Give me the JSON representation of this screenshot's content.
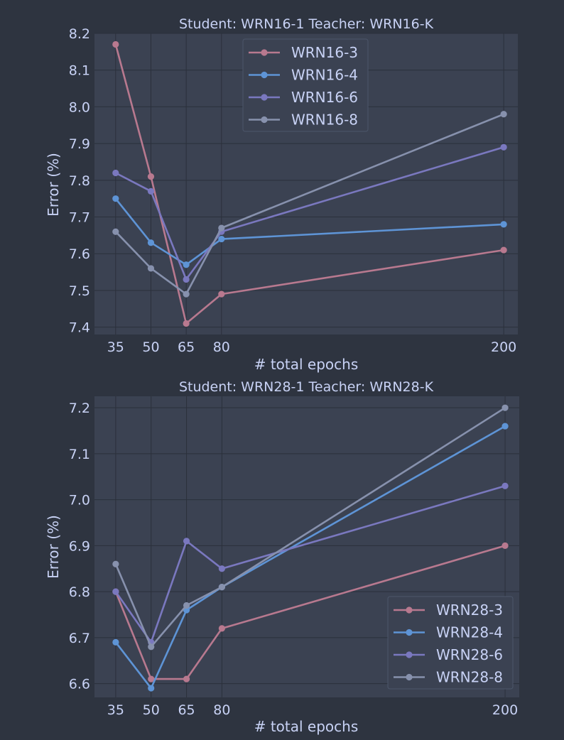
{
  "chart_data": [
    {
      "type": "line",
      "title": "Student: WRN16-1  Teacher: WRN16-K",
      "xlabel": "# total epochs",
      "ylabel": "Error (%)",
      "x": [
        35,
        50,
        65,
        80,
        200
      ],
      "xticks": [
        "35",
        "50",
        "65",
        "80",
        "200"
      ],
      "xlim": [
        26,
        206
      ],
      "ylim": [
        7.38,
        8.2
      ],
      "yticks": [
        "7.4",
        "7.5",
        "7.6",
        "7.7",
        "7.8",
        "7.9",
        "8.0",
        "8.1",
        "8.2"
      ],
      "ytick_values": [
        7.4,
        7.5,
        7.6,
        7.7,
        7.8,
        7.9,
        8.0,
        8.1,
        8.2
      ],
      "grid": true,
      "legend_position": "top-center",
      "series": [
        {
          "name": "WRN16-3",
          "color": "#b8798f",
          "values": [
            8.17,
            7.81,
            7.41,
            7.49,
            7.61
          ]
        },
        {
          "name": "WRN16-4",
          "color": "#5e94d6",
          "values": [
            7.75,
            7.63,
            7.57,
            7.64,
            7.68
          ]
        },
        {
          "name": "WRN16-6",
          "color": "#7a78bf",
          "values": [
            7.82,
            7.77,
            7.53,
            7.66,
            7.89
          ]
        },
        {
          "name": "WRN16-8",
          "color": "#8791ad",
          "values": [
            7.66,
            7.56,
            7.49,
            7.67,
            7.98
          ]
        }
      ]
    },
    {
      "type": "line",
      "title": "Student: WRN28-1  Teacher: WRN28-K",
      "xlabel": "# total epochs",
      "ylabel": "Error (%)",
      "x": [
        35,
        50,
        65,
        80,
        200
      ],
      "xticks": [
        "35",
        "50",
        "65",
        "80",
        "200"
      ],
      "xlim": [
        26,
        206
      ],
      "ylim": [
        6.57,
        7.225
      ],
      "yticks": [
        "6.6",
        "6.7",
        "6.8",
        "6.9",
        "7.0",
        "7.1",
        "7.2"
      ],
      "ytick_values": [
        6.6,
        6.7,
        6.8,
        6.9,
        7.0,
        7.1,
        7.2
      ],
      "grid": true,
      "legend_position": "bottom-right",
      "series": [
        {
          "name": "WRN28-3",
          "color": "#b8798f",
          "values": [
            6.8,
            6.61,
            6.61,
            6.72,
            6.9
          ]
        },
        {
          "name": "WRN28-4",
          "color": "#5e94d6",
          "values": [
            6.69,
            6.59,
            6.76,
            6.81,
            7.16
          ]
        },
        {
          "name": "WRN28-6",
          "color": "#7a78bf",
          "values": [
            6.8,
            6.69,
            6.91,
            6.85,
            7.03
          ]
        },
        {
          "name": "WRN28-8",
          "color": "#8791ad",
          "values": [
            6.86,
            6.68,
            6.77,
            6.81,
            7.2
          ]
        }
      ]
    }
  ]
}
